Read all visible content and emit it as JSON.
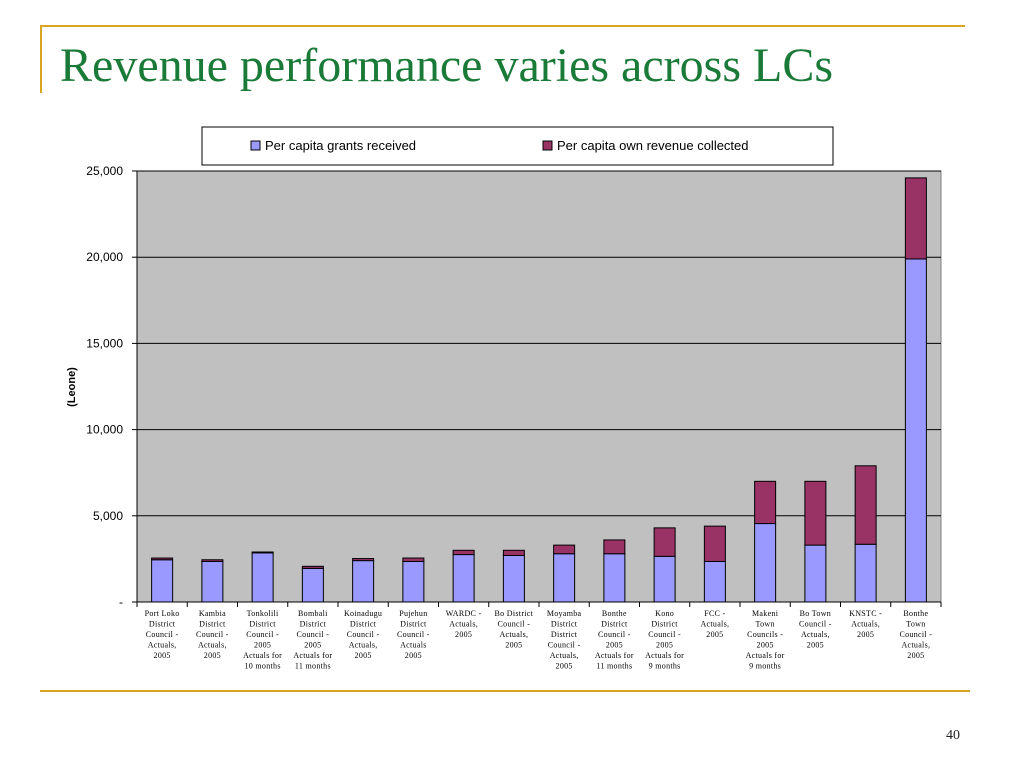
{
  "slide": {
    "title": "Revenue performance varies across LCs",
    "page_number": "40"
  },
  "colors": {
    "accent_rule": "#d9a521",
    "title": "#1a7a38",
    "plot_background": "#c0c0c0",
    "grants": "#9999ff",
    "own_revenue": "#993366"
  },
  "chart_data": {
    "type": "bar",
    "stacked": true,
    "title": "",
    "xlabel": "",
    "ylabel": "(Leone)",
    "ylim": [
      0,
      25000
    ],
    "yticks": [
      0,
      5000,
      10000,
      15000,
      20000,
      25000
    ],
    "ytick_labels": [
      "-",
      "5,000",
      "10,000",
      "15,000",
      "20,000",
      "25,000"
    ],
    "grid": true,
    "legend_position": "top",
    "categories": [
      [
        "Port Loko",
        "District",
        "Council -",
        "Actuals,",
        "2005"
      ],
      [
        "Kambia",
        "District",
        "Council -",
        "Actuals,",
        "2005"
      ],
      [
        "Tonkolili",
        "District",
        "Council -",
        "2005",
        "Actuals for",
        "10 months"
      ],
      [
        "Bombali",
        "District",
        "Council -",
        "2005",
        "Actuals for",
        "11 months"
      ],
      [
        "Koinadugu",
        "District",
        "Council -",
        "Actuals,",
        "2005"
      ],
      [
        "Pujehun",
        "District",
        "Council -",
        "Actuals",
        "2005"
      ],
      [
        "WARDC -",
        "Actuals,",
        "2005"
      ],
      [
        "Bo District",
        "Council -",
        "Actuals,",
        "2005"
      ],
      [
        "Moyamba",
        "District",
        "District",
        "Council -",
        "Actuals,",
        "2005"
      ],
      [
        "Bonthe",
        "District",
        "Council -",
        "2005",
        "Actuals for",
        "11 months"
      ],
      [
        "Kono",
        "District",
        "Council -",
        "2005",
        "Actuals for",
        "9 months"
      ],
      [
        "FCC -",
        "Actuals,",
        "2005"
      ],
      [
        "Makeni",
        "Town",
        "Councils -",
        "2005",
        "Actuals for",
        "9 months"
      ],
      [
        "Bo Town",
        "Council -",
        "Actuals,",
        "2005"
      ],
      [
        "KNSTC -",
        "Actuals,",
        "2005"
      ],
      [
        "Bonthe",
        "Town",
        "Council -",
        "Actuals,",
        "2005"
      ]
    ],
    "series": [
      {
        "name": "Per capita grants received",
        "values": [
          2450,
          2350,
          2850,
          1950,
          2400,
          2350,
          2750,
          2700,
          2800,
          2800,
          2650,
          2350,
          4550,
          3300,
          3350,
          19900
        ]
      },
      {
        "name": "Per capita own revenue collected",
        "values": [
          100,
          100,
          50,
          120,
          120,
          200,
          250,
          300,
          500,
          800,
          1650,
          2050,
          2450,
          3700,
          4550,
          4700
        ]
      }
    ]
  }
}
